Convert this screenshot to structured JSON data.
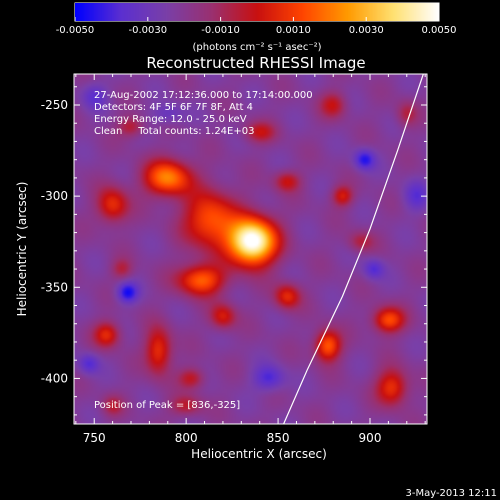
{
  "chart_data": {
    "type": "heatmap",
    "title": "Reconstructed RHESSI Image",
    "xlabel": "Heliocentric X (arcsec)",
    "ylabel": "Heliocentric Y (arcsec)",
    "xlim": [
      739,
      931
    ],
    "ylim": [
      -425,
      -233
    ],
    "xticks": [
      750,
      800,
      850,
      900
    ],
    "yticks": [
      -250,
      -300,
      -350,
      -400
    ],
    "colorbar": {
      "range": [
        -0.005,
        0.005
      ],
      "ticks": [
        "-0.0050",
        "-0.0030",
        "-0.0010",
        "0.0010",
        "0.0030",
        "0.0050"
      ],
      "label": "(photons cm⁻² s⁻¹ asec⁻²)",
      "colors": [
        "#0000ff",
        "#5b2fd0",
        "#7a3fa8",
        "#9a3070",
        "#c81010",
        "#ff4400",
        "#ff9a00",
        "#ffe070",
        "#ffffff"
      ]
    },
    "annotations": [
      "27-Aug-2002 17:12:36.000 to 17:14:00.000",
      "Detectors: 4F 5F 6F 7F 8F, Att 4",
      "Energy Range: 12.0 - 25.0 keV",
      "Clean     Total counts: 1.24E+03"
    ],
    "peak_label": "Position of Peak = [836,-325]",
    "peak": [
      836,
      -325
    ],
    "limb_curve": [
      [
        929,
        -233
      ],
      [
        915,
        -275
      ],
      [
        900,
        -318
      ],
      [
        885,
        -355
      ],
      [
        866,
        -395
      ],
      [
        853,
        -425
      ]
    ],
    "sources": [
      {
        "x": 836,
        "y": -325,
        "sx": 9,
        "sy": 9,
        "a": 5.0
      },
      {
        "x": 813,
        "y": -313,
        "sx": 10,
        "sy": 11,
        "a": 2.4
      },
      {
        "x": 790,
        "y": -290,
        "sx": 9,
        "sy": 7,
        "a": 2.8
      },
      {
        "x": 760,
        "y": -305,
        "sx": 6,
        "sy": 7,
        "a": 1.9
      },
      {
        "x": 808,
        "y": -346,
        "sx": 9,
        "sy": 6,
        "a": 2.5
      },
      {
        "x": 785,
        "y": -385,
        "sx": 5,
        "sy": 9,
        "a": 2.0
      },
      {
        "x": 757,
        "y": -376,
        "sx": 5,
        "sy": 5,
        "a": 1.8
      },
      {
        "x": 820,
        "y": -366,
        "sx": 5,
        "sy": 5,
        "a": 1.6
      },
      {
        "x": 855,
        "y": -355,
        "sx": 5,
        "sy": 5,
        "a": 1.8
      },
      {
        "x": 877,
        "y": -382,
        "sx": 5,
        "sy": 6,
        "a": 2.5
      },
      {
        "x": 910,
        "y": -368,
        "sx": 6,
        "sy": 5,
        "a": 2.3
      },
      {
        "x": 912,
        "y": -405,
        "sx": 6,
        "sy": 7,
        "a": 2.0
      },
      {
        "x": 885,
        "y": -300,
        "sx": 4,
        "sy": 4,
        "a": 1.6
      },
      {
        "x": 880,
        "y": -250,
        "sx": 5,
        "sy": 5,
        "a": 1.3
      },
      {
        "x": 840,
        "y": -265,
        "sx": 6,
        "sy": 4,
        "a": 1.3
      },
      {
        "x": 855,
        "y": -292,
        "sx": 5,
        "sy": 4,
        "a": 1.4
      },
      {
        "x": 770,
        "y": -262,
        "sx": 5,
        "sy": 4,
        "a": 1.2
      },
      {
        "x": 803,
        "y": -400,
        "sx": 5,
        "sy": 4,
        "a": 1.3
      },
      {
        "x": 800,
        "y": -415,
        "sx": 6,
        "sy": 4,
        "a": 1.2
      },
      {
        "x": 765,
        "y": -340,
        "sx": 4,
        "sy": 4,
        "a": 1.0
      },
      {
        "x": 760,
        "y": -415,
        "sx": 4,
        "sy": 4,
        "a": 1.0
      },
      {
        "x": 895,
        "y": -325,
        "sx": 5,
        "sy": 4,
        "a": 1.0
      },
      {
        "x": 920,
        "y": -255,
        "sx": 4,
        "sy": 5,
        "a": 1.0
      },
      {
        "x": 768,
        "y": -353,
        "sx": 4,
        "sy": 4,
        "a": -1.6
      },
      {
        "x": 897,
        "y": -280,
        "sx": 4,
        "sy": 4,
        "a": -1.5
      },
      {
        "x": 845,
        "y": -400,
        "sx": 6,
        "sy": 5,
        "a": -1.2
      },
      {
        "x": 902,
        "y": -340,
        "sx": 4,
        "sy": 4,
        "a": -1.1
      },
      {
        "x": 747,
        "y": -392,
        "sx": 4,
        "sy": 4,
        "a": -1.1
      },
      {
        "x": 750,
        "y": -245,
        "sx": 5,
        "sy": 5,
        "a": -0.9
      },
      {
        "x": 925,
        "y": -300,
        "sx": 5,
        "sy": 6,
        "a": -0.9
      },
      {
        "x": 790,
        "y": -255,
        "sx": 6,
        "sy": 4,
        "a": -0.8
      }
    ]
  },
  "footer": {
    "date": "3-May-2013 12:11"
  }
}
